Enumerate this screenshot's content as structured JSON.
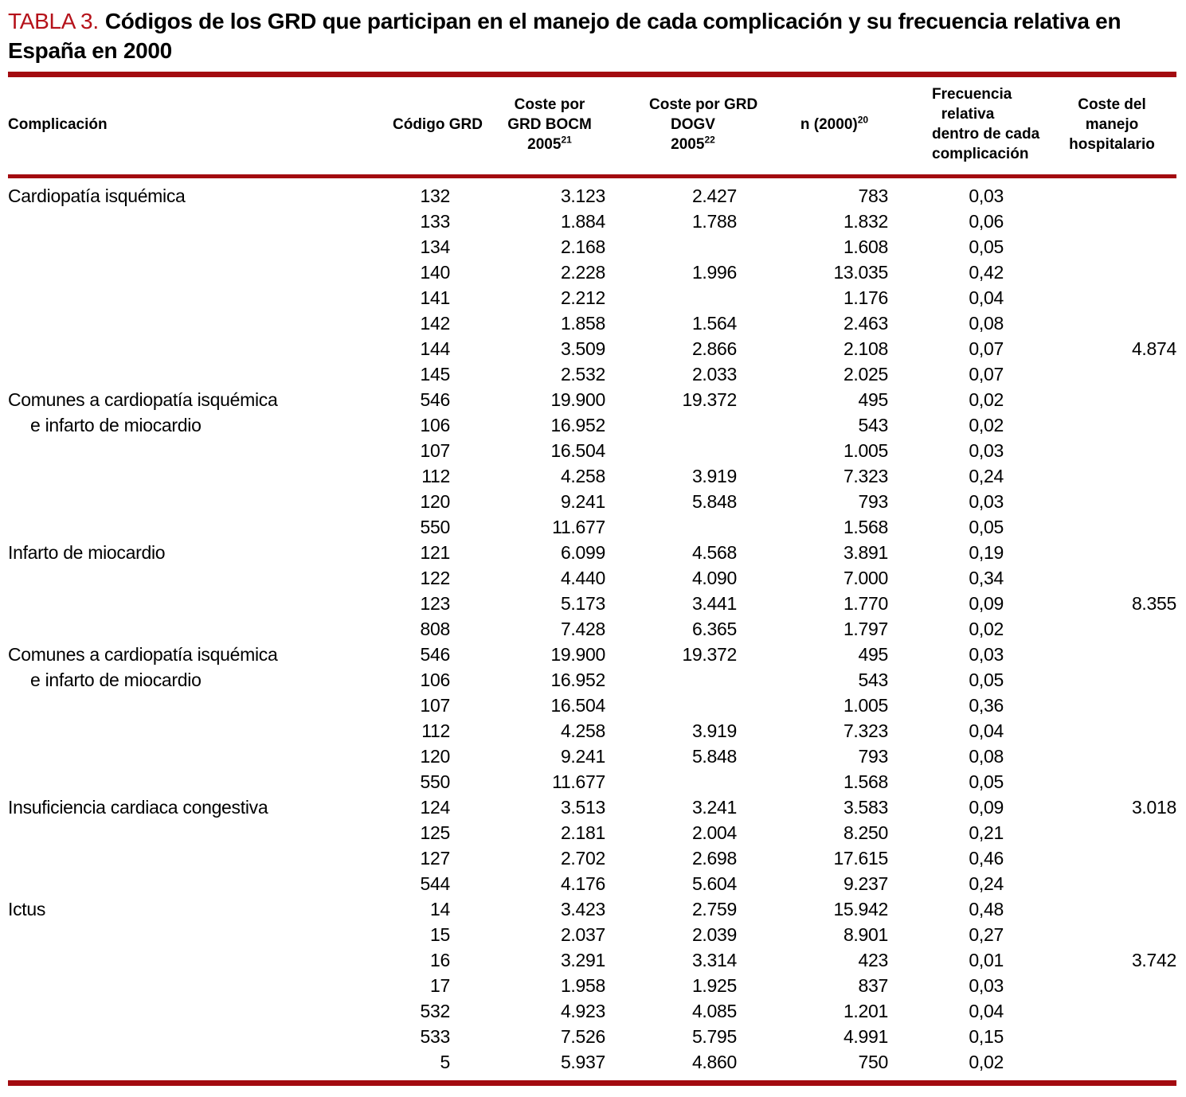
{
  "title": {
    "label": "TABLA 3.",
    "text": "Códigos de los GRD que participan en el manejo de cada complicación y su frecuencia relativa en España en 2000"
  },
  "colors": {
    "accent_red": "#b5121a",
    "rule_red": "#a30b10"
  },
  "table": {
    "columns": [
      {
        "id": "complicacion",
        "lines": [
          "Complicación"
        ]
      },
      {
        "id": "codigo-grd",
        "lines": [
          "Código GRD"
        ]
      },
      {
        "id": "coste-bocm",
        "lines": [
          "Coste por",
          "GRD BOCM",
          "2005"
        ],
        "sup": "21"
      },
      {
        "id": "coste-dogv",
        "lines": [
          "Coste por GRD",
          "DOGV",
          "2005"
        ],
        "sup": "22"
      },
      {
        "id": "n-2000",
        "lines": [
          "n (2000)"
        ],
        "sup": "20"
      },
      {
        "id": "frecuencia",
        "lines": [
          "Frecuencia",
          "relativa",
          "dentro de cada",
          "complicación"
        ]
      },
      {
        "id": "coste-manejo",
        "lines": [
          "Coste del",
          "manejo",
          "hospitalario"
        ]
      }
    ],
    "rows": [
      {
        "label": "Cardiopatía isquémica",
        "indent": false,
        "codigo": "132",
        "bocm": "3.123",
        "dogv": "2.427",
        "n": "783",
        "frec": "0,03",
        "coste": ""
      },
      {
        "label": "",
        "indent": false,
        "codigo": "133",
        "bocm": "1.884",
        "dogv": "1.788",
        "n": "1.832",
        "frec": "0,06",
        "coste": ""
      },
      {
        "label": "",
        "indent": false,
        "codigo": "134",
        "bocm": "2.168",
        "dogv": "",
        "n": "1.608",
        "frec": "0,05",
        "coste": ""
      },
      {
        "label": "",
        "indent": false,
        "codigo": "140",
        "bocm": "2.228",
        "dogv": "1.996",
        "n": "13.035",
        "frec": "0,42",
        "coste": ""
      },
      {
        "label": "",
        "indent": false,
        "codigo": "141",
        "bocm": "2.212",
        "dogv": "",
        "n": "1.176",
        "frec": "0,04",
        "coste": ""
      },
      {
        "label": "",
        "indent": false,
        "codigo": "142",
        "bocm": "1.858",
        "dogv": "1.564",
        "n": "2.463",
        "frec": "0,08",
        "coste": ""
      },
      {
        "label": "",
        "indent": false,
        "codigo": "144",
        "bocm": "3.509",
        "dogv": "2.866",
        "n": "2.108",
        "frec": "0,07",
        "coste": "4.874"
      },
      {
        "label": "",
        "indent": false,
        "codigo": "145",
        "bocm": "2.532",
        "dogv": "2.033",
        "n": "2.025",
        "frec": "0,07",
        "coste": ""
      },
      {
        "label": "Comunes a cardiopatía isquémica",
        "indent": false,
        "codigo": "546",
        "bocm": "19.900",
        "dogv": "19.372",
        "n": "495",
        "frec": "0,02",
        "coste": ""
      },
      {
        "label": "e infarto de miocardio",
        "indent": true,
        "codigo": "106",
        "bocm": "16.952",
        "dogv": "",
        "n": "543",
        "frec": "0,02",
        "coste": ""
      },
      {
        "label": "",
        "indent": false,
        "codigo": "107",
        "bocm": "16.504",
        "dogv": "",
        "n": "1.005",
        "frec": "0,03",
        "coste": ""
      },
      {
        "label": "",
        "indent": false,
        "codigo": "112",
        "bocm": "4.258",
        "dogv": "3.919",
        "n": "7.323",
        "frec": "0,24",
        "coste": ""
      },
      {
        "label": "",
        "indent": false,
        "codigo": "120",
        "bocm": "9.241",
        "dogv": "5.848",
        "n": "793",
        "frec": "0,03",
        "coste": ""
      },
      {
        "label": "",
        "indent": false,
        "codigo": "550",
        "bocm": "11.677",
        "dogv": "",
        "n": "1.568",
        "frec": "0,05",
        "coste": ""
      },
      {
        "label": "Infarto de miocardio",
        "indent": false,
        "codigo": "121",
        "bocm": "6.099",
        "dogv": "4.568",
        "n": "3.891",
        "frec": "0,19",
        "coste": ""
      },
      {
        "label": "",
        "indent": false,
        "codigo": "122",
        "bocm": "4.440",
        "dogv": "4.090",
        "n": "7.000",
        "frec": "0,34",
        "coste": ""
      },
      {
        "label": "",
        "indent": false,
        "codigo": "123",
        "bocm": "5.173",
        "dogv": "3.441",
        "n": "1.770",
        "frec": "0,09",
        "coste": "8.355"
      },
      {
        "label": "",
        "indent": false,
        "codigo": "808",
        "bocm": "7.428",
        "dogv": "6.365",
        "n": "1.797",
        "frec": "0,02",
        "coste": ""
      },
      {
        "label": "Comunes a cardiopatía isquémica",
        "indent": false,
        "codigo": "546",
        "bocm": "19.900",
        "dogv": "19.372",
        "n": "495",
        "frec": "0,03",
        "coste": ""
      },
      {
        "label": "e infarto de miocardio",
        "indent": true,
        "codigo": "106",
        "bocm": "16.952",
        "dogv": "",
        "n": "543",
        "frec": "0,05",
        "coste": ""
      },
      {
        "label": "",
        "indent": false,
        "codigo": "107",
        "bocm": "16.504",
        "dogv": "",
        "n": "1.005",
        "frec": "0,36",
        "coste": ""
      },
      {
        "label": "",
        "indent": false,
        "codigo": "112",
        "bocm": "4.258",
        "dogv": "3.919",
        "n": "7.323",
        "frec": "0,04",
        "coste": ""
      },
      {
        "label": "",
        "indent": false,
        "codigo": "120",
        "bocm": "9.241",
        "dogv": "5.848",
        "n": "793",
        "frec": "0,08",
        "coste": ""
      },
      {
        "label": "",
        "indent": false,
        "codigo": "550",
        "bocm": "11.677",
        "dogv": "",
        "n": "1.568",
        "frec": "0,05",
        "coste": ""
      },
      {
        "label": "Insuficiencia cardiaca congestiva",
        "indent": false,
        "codigo": "124",
        "bocm": "3.513",
        "dogv": "3.241",
        "n": "3.583",
        "frec": "0,09",
        "coste": "3.018"
      },
      {
        "label": "",
        "indent": false,
        "codigo": "125",
        "bocm": "2.181",
        "dogv": "2.004",
        "n": "8.250",
        "frec": "0,21",
        "coste": ""
      },
      {
        "label": "",
        "indent": false,
        "codigo": "127",
        "bocm": "2.702",
        "dogv": "2.698",
        "n": "17.615",
        "frec": "0,46",
        "coste": ""
      },
      {
        "label": "",
        "indent": false,
        "codigo": "544",
        "bocm": "4.176",
        "dogv": "5.604",
        "n": "9.237",
        "frec": "0,24",
        "coste": ""
      },
      {
        "label": "Ictus",
        "indent": false,
        "codigo": "14",
        "bocm": "3.423",
        "dogv": "2.759",
        "n": "15.942",
        "frec": "0,48",
        "coste": ""
      },
      {
        "label": "",
        "indent": false,
        "codigo": "15",
        "bocm": "2.037",
        "dogv": "2.039",
        "n": "8.901",
        "frec": "0,27",
        "coste": ""
      },
      {
        "label": "",
        "indent": false,
        "codigo": "16",
        "bocm": "3.291",
        "dogv": "3.314",
        "n": "423",
        "frec": "0,01",
        "coste": "3.742"
      },
      {
        "label": "",
        "indent": false,
        "codigo": "17",
        "bocm": "1.958",
        "dogv": "1.925",
        "n": "837",
        "frec": "0,03",
        "coste": ""
      },
      {
        "label": "",
        "indent": false,
        "codigo": "532",
        "bocm": "4.923",
        "dogv": "4.085",
        "n": "1.201",
        "frec": "0,04",
        "coste": ""
      },
      {
        "label": "",
        "indent": false,
        "codigo": "533",
        "bocm": "7.526",
        "dogv": "5.795",
        "n": "4.991",
        "frec": "0,15",
        "coste": ""
      },
      {
        "label": "",
        "indent": false,
        "codigo": "5",
        "bocm": "5.937",
        "dogv": "4.860",
        "n": "750",
        "frec": "0,02",
        "coste": ""
      }
    ]
  }
}
